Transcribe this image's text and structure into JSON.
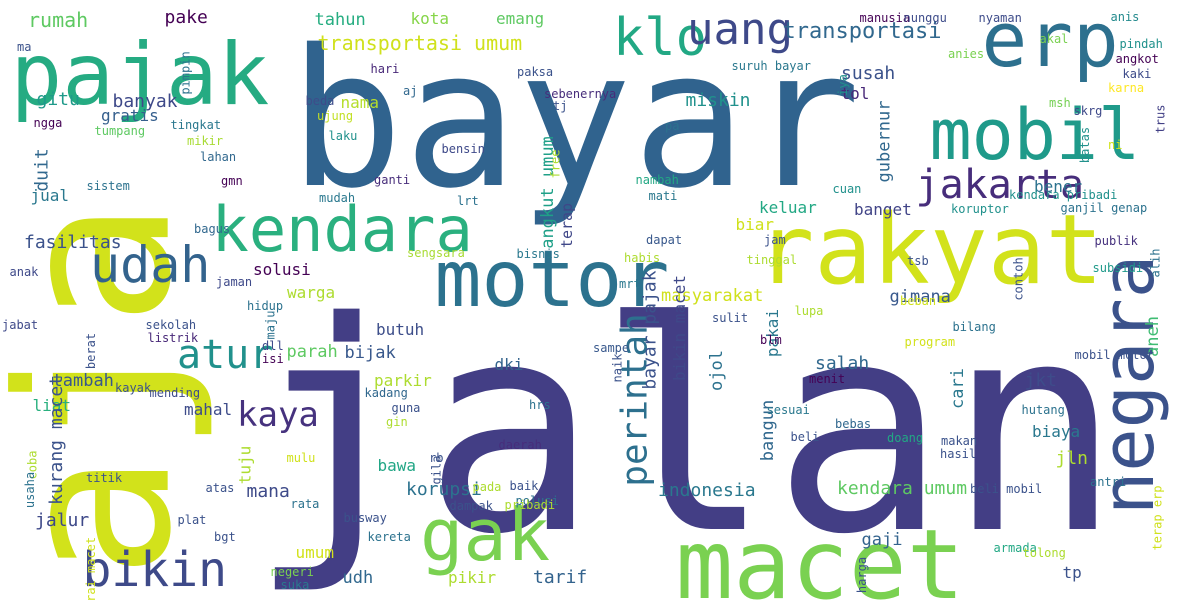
{
  "words": [
    {
      "text": "jalan",
      "color": "#433e85"
    },
    {
      "text": "bayar",
      "color": "#30638e"
    },
    {
      "text": "aja",
      "color": "#d2e21b"
    },
    {
      "text": "macet",
      "color": "#7ad151"
    },
    {
      "text": "pajak",
      "color": "#25ab82"
    },
    {
      "text": "erp",
      "color": "#2d708e"
    },
    {
      "text": "mobil",
      "color": "#1f9a8a"
    },
    {
      "text": "rakyat",
      "color": "#d2e21b"
    },
    {
      "text": "motor",
      "color": "#2c728e"
    },
    {
      "text": "kendara",
      "color": "#2ab07f"
    },
    {
      "text": "negara",
      "color": "#3b528b"
    },
    {
      "text": "gak",
      "color": "#7ad151"
    },
    {
      "text": "udah",
      "color": "#33638d"
    },
    {
      "text": "bikin",
      "color": "#3e4a89"
    },
    {
      "text": "klo",
      "color": "#22a884"
    },
    {
      "text": "uang",
      "color": "#3e4989"
    },
    {
      "text": "jakarta",
      "color": "#472d7b"
    },
    {
      "text": "perintah",
      "color": "#2d708e"
    },
    {
      "text": "atur",
      "color": "#21918c"
    },
    {
      "text": "kaya",
      "color": "#46327e"
    },
    {
      "text": "transportasi umum",
      "color": "#d0e11c"
    },
    {
      "text": "transportasi",
      "color": "#31688e"
    },
    {
      "text": "tahun",
      "color": "#26ad81"
    },
    {
      "text": "kota",
      "color": "#86d549"
    },
    {
      "text": "emang",
      "color": "#5ec962"
    },
    {
      "text": "rumah",
      "color": "#5ec962"
    },
    {
      "text": "pake",
      "color": "#440154"
    },
    {
      "text": "gitu",
      "color": "#1f9a8a"
    },
    {
      "text": "banyak",
      "color": "#3e4989"
    },
    {
      "text": "gratis",
      "color": "#355f8d"
    },
    {
      "text": "susah",
      "color": "#3b528b"
    },
    {
      "text": "tol",
      "color": "#482878"
    },
    {
      "text": "miskin",
      "color": "#21918c"
    },
    {
      "text": "nama",
      "color": "#b5de2b"
    },
    {
      "text": "duit",
      "color": "#31688e"
    },
    {
      "text": "jual",
      "color": "#2a788e"
    },
    {
      "text": "fasilitas",
      "color": "#3b528b"
    },
    {
      "text": "solusi",
      "color": "#440154"
    },
    {
      "text": "warga",
      "color": "#addc30"
    },
    {
      "text": "tambah",
      "color": "#38588c"
    },
    {
      "text": "mahal",
      "color": "#3e4c8a"
    },
    {
      "text": "parah",
      "color": "#5ec962"
    },
    {
      "text": "bijak",
      "color": "#38588c"
    },
    {
      "text": "butuh",
      "color": "#3d4e8a"
    },
    {
      "text": "parkir",
      "color": "#addc30"
    },
    {
      "text": "dki",
      "color": "#33638d"
    },
    {
      "text": "liat",
      "color": "#2ab07f"
    },
    {
      "text": "kurang macet",
      "color": "#3b528b"
    },
    {
      "text": "tuju",
      "color": "#addc30"
    },
    {
      "text": "mana",
      "color": "#3e4a89"
    },
    {
      "text": "korupsi",
      "color": "#2c728e"
    },
    {
      "text": "jalur",
      "color": "#3e4989"
    },
    {
      "text": "umum",
      "color": "#d2e21b"
    },
    {
      "text": "udh",
      "color": "#31688e"
    },
    {
      "text": "pikir",
      "color": "#addc30"
    },
    {
      "text": "tarif",
      "color": "#33638d"
    },
    {
      "text": "bawa",
      "color": "#21a685"
    },
    {
      "text": "indonesia",
      "color": "#2a788e"
    },
    {
      "text": "masyarakat",
      "color": "#d0e11c"
    },
    {
      "text": "gimana",
      "color": "#38588c"
    },
    {
      "text": "salah",
      "color": "#31688e"
    },
    {
      "text": "jkt",
      "color": "#3e4c8a"
    },
    {
      "text": "cari",
      "color": "#2a788e"
    },
    {
      "text": "biaya",
      "color": "#2a788e"
    },
    {
      "text": "jln",
      "color": "#addc30"
    },
    {
      "text": "kendara umum",
      "color": "#5ec962"
    },
    {
      "text": "gaji",
      "color": "#33638d"
    },
    {
      "text": "tp",
      "color": "#3b528b"
    },
    {
      "text": "keluar",
      "color": "#22a884"
    },
    {
      "text": "banget",
      "color": "#414487"
    },
    {
      "text": "bener",
      "color": "#2c728e"
    },
    {
      "text": "gubernur",
      "color": "#31688e"
    },
    {
      "text": "biar",
      "color": "#d0e11c"
    },
    {
      "text": "angkut umum",
      "color": "#1fa088"
    },
    {
      "text": "terap",
      "color": "#3f4788"
    },
    {
      "text": "bayar pajak",
      "color": "#3b528b"
    },
    {
      "text": "bikin macet",
      "color": "#3f4889"
    },
    {
      "text": "ojol",
      "color": "#2c728e"
    },
    {
      "text": "pakai",
      "color": "#2a788e"
    },
    {
      "text": "bangun",
      "color": "#31688e"
    },
    {
      "text": "aneh",
      "color": "#3fbc73"
    },
    {
      "text": "manusia",
      "color": "#440154"
    },
    {
      "text": "nunggu",
      "color": "#3e4c8a"
    },
    {
      "text": "nyaman",
      "color": "#3e4c8a"
    },
    {
      "text": "anis",
      "color": "#238a8d"
    },
    {
      "text": "akal",
      "color": "#7ad151"
    },
    {
      "text": "pindah",
      "color": "#21918c"
    },
    {
      "text": "angkot",
      "color": "#440154"
    },
    {
      "text": "kaki",
      "color": "#3e4c8a"
    },
    {
      "text": "karna",
      "color": "#fde725"
    },
    {
      "text": "anies",
      "color": "#7ad151"
    },
    {
      "text": "msh",
      "color": "#75d054"
    },
    {
      "text": "skrg",
      "color": "#3e4989"
    },
    {
      "text": "trus",
      "color": "#424086"
    },
    {
      "text": "ni",
      "color": "#d2e21b"
    },
    {
      "text": "batas",
      "color": "#21918c"
    },
    {
      "text": "ma",
      "color": "#3b528b"
    },
    {
      "text": "hari",
      "color": "#482878"
    },
    {
      "text": "aj",
      "color": "#31688e"
    },
    {
      "text": "paksa",
      "color": "#3b528b"
    },
    {
      "text": "tj",
      "color": "#3b528b"
    },
    {
      "text": "suruh bayar",
      "color": "#2a788e"
    },
    {
      "text": "iya",
      "color": "#21918c"
    },
    {
      "text": "pimpin",
      "color": "#2c728e"
    },
    {
      "text": "beda",
      "color": "#3e4c8a"
    },
    {
      "text": "sebenernya",
      "color": "#472d7b"
    },
    {
      "text": "ngga",
      "color": "#440154"
    },
    {
      "text": "tumpang",
      "color": "#5ec962"
    },
    {
      "text": "tingkat",
      "color": "#2a788e"
    },
    {
      "text": "mikir",
      "color": "#a8db34"
    },
    {
      "text": "ujung",
      "color": "#c2df23"
    },
    {
      "text": "pa",
      "color": "#2c728e"
    },
    {
      "text": "laku",
      "color": "#21918c"
    },
    {
      "text": "bensin",
      "color": "#3e4989"
    },
    {
      "text": "lahan",
      "color": "#31688e"
    },
    {
      "text": "free",
      "color": "#addc30"
    },
    {
      "text": "sistem",
      "color": "#2c728e"
    },
    {
      "text": "gmn",
      "color": "#440154"
    },
    {
      "text": "ganti",
      "color": "#472d7b"
    },
    {
      "text": "nambah",
      "color": "#22a884"
    },
    {
      "text": "mati",
      "color": "#2a788e"
    },
    {
      "text": "cuan",
      "color": "#21918c"
    },
    {
      "text": "kendara pribadi",
      "color": "#21918c"
    },
    {
      "text": "koruptor",
      "color": "#21918c"
    },
    {
      "text": "ganjil genap",
      "color": "#2c728e"
    },
    {
      "text": "mudah",
      "color": "#2a788e"
    },
    {
      "text": "lrt",
      "color": "#2c728e"
    },
    {
      "text": "bagus",
      "color": "#31688e"
    },
    {
      "text": "dapat",
      "color": "#38588c"
    },
    {
      "text": "jam",
      "color": "#3b528b"
    },
    {
      "text": "publik",
      "color": "#46327e"
    },
    {
      "text": "habis",
      "color": "#addc30"
    },
    {
      "text": "sengsara",
      "color": "#a8db34"
    },
    {
      "text": "bisnis",
      "color": "#2a788e"
    },
    {
      "text": "tinggal",
      "color": "#addc30"
    },
    {
      "text": "alih",
      "color": "#2c728e"
    },
    {
      "text": "anak",
      "color": "#3e4989"
    },
    {
      "text": "jaman",
      "color": "#3e4989"
    },
    {
      "text": "subsidi",
      "color": "#1f9a8a"
    },
    {
      "text": "tsb",
      "color": "#3b528b"
    },
    {
      "text": "mrt",
      "color": "#2a788e"
    },
    {
      "text": "contoh",
      "color": "#3b528b"
    },
    {
      "text": "beban",
      "color": "#d0e11c"
    },
    {
      "text": "hidup",
      "color": "#2c728e"
    },
    {
      "text": "maju",
      "color": "#2c728e"
    },
    {
      "text": "lupa",
      "color": "#addc30"
    },
    {
      "text": "sulit",
      "color": "#3b528b"
    },
    {
      "text": "jabat",
      "color": "#3e4989"
    },
    {
      "text": "sekolah",
      "color": "#3b528b"
    },
    {
      "text": "listrik",
      "color": "#482878"
    },
    {
      "text": "berat",
      "color": "#3b528b"
    },
    {
      "text": "bilang",
      "color": "#2c728e"
    },
    {
      "text": "sampe",
      "color": "#38588c"
    },
    {
      "text": "dll",
      "color": "#3e4989"
    },
    {
      "text": "blm",
      "color": "#440154"
    },
    {
      "text": "program",
      "color": "#d2e21b"
    },
    {
      "text": "isi",
      "color": "#440154"
    },
    {
      "text": "naik",
      "color": "#3b528b"
    },
    {
      "text": "menit",
      "color": "#440154"
    },
    {
      "text": "mobil motor",
      "color": "#3b528b"
    },
    {
      "text": "coba",
      "color": "#addc30"
    },
    {
      "text": "kayak",
      "color": "#3b528b"
    },
    {
      "text": "mending",
      "color": "#3e4c8a"
    },
    {
      "text": "kadang",
      "color": "#31688e"
    },
    {
      "text": "guna",
      "color": "#3b528b"
    },
    {
      "text": "hrs",
      "color": "#2c728e"
    },
    {
      "text": "sesuai",
      "color": "#2a788e"
    },
    {
      "text": "hutang",
      "color": "#2c728e"
    },
    {
      "text": "gin",
      "color": "#addc30"
    },
    {
      "text": "beli",
      "color": "#3b528b"
    },
    {
      "text": "bebas",
      "color": "#31688e"
    },
    {
      "text": "doang",
      "color": "#22a884"
    },
    {
      "text": "makan",
      "color": "#3b528b"
    },
    {
      "text": "hasil",
      "color": "#3b528b"
    },
    {
      "text": "daerah",
      "color": "#472d7b"
    },
    {
      "text": "mulu",
      "color": "#d0e11c"
    },
    {
      "text": "rb",
      "color": "#3b528b"
    },
    {
      "text": "gila",
      "color": "#3b528b"
    },
    {
      "text": "titik",
      "color": "#3b528b"
    },
    {
      "text": "atas",
      "color": "#3b528b"
    },
    {
      "text": "pada",
      "color": "#addc30"
    },
    {
      "text": "baik",
      "color": "#3b528b"
    },
    {
      "text": "polusi",
      "color": "#2c728e"
    },
    {
      "text": "beli mobil",
      "color": "#3b528b"
    },
    {
      "text": "antri",
      "color": "#2c728e"
    },
    {
      "text": "terap erp",
      "color": "#d0e11c"
    },
    {
      "text": "usaha",
      "color": "#2c728e"
    },
    {
      "text": "rata",
      "color": "#2c728e"
    },
    {
      "text": "pribadi",
      "color": "#addc30"
    },
    {
      "text": "dampak",
      "color": "#3b528b"
    },
    {
      "text": "plat",
      "color": "#3b528b"
    },
    {
      "text": "bgt",
      "color": "#3b528b"
    },
    {
      "text": "busway",
      "color": "#3b528b"
    },
    {
      "text": "kereta",
      "color": "#2c728e"
    },
    {
      "text": "armada",
      "color": "#22a884"
    },
    {
      "text": "tolong",
      "color": "#addc30"
    },
    {
      "text": "urai macet",
      "color": "#d0e11c"
    },
    {
      "text": "negeri",
      "color": "#7ad151"
    },
    {
      "text": "suka",
      "color": "#2a788e"
    },
    {
      "text": "harga",
      "color": "#3b528b"
    }
  ]
}
